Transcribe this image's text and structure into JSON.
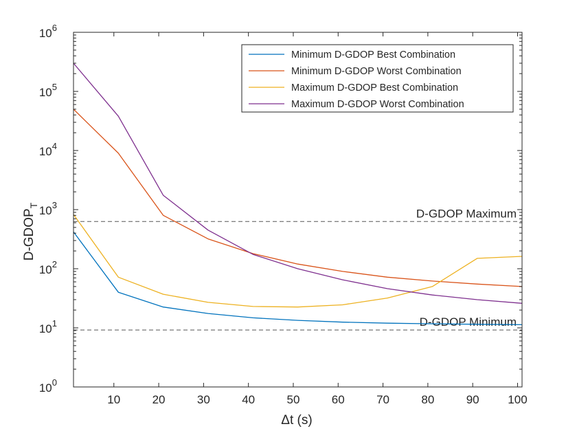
{
  "chart_data": {
    "type": "line",
    "title": "",
    "xlabel": "Δt (s)",
    "ylabel": {
      "main": "D-GDOP",
      "sub": "T"
    },
    "x_axis": {
      "min": 1,
      "max": 101,
      "ticks": [
        10,
        20,
        30,
        40,
        50,
        60,
        70,
        80,
        90,
        100
      ]
    },
    "y_axis": {
      "scale": "log",
      "min": 1,
      "max": 1000000,
      "ticks": [
        {
          "value": 1,
          "base": "10",
          "exp": "0"
        },
        {
          "value": 10,
          "base": "10",
          "exp": "1"
        },
        {
          "value": 100,
          "base": "10",
          "exp": "2"
        },
        {
          "value": 1000,
          "base": "10",
          "exp": "3"
        },
        {
          "value": 10000,
          "base": "10",
          "exp": "4"
        },
        {
          "value": 100000,
          "base": "10",
          "exp": "5"
        },
        {
          "value": 1000000,
          "base": "10",
          "exp": "6"
        }
      ]
    },
    "x": [
      1,
      11,
      21,
      31,
      41,
      51,
      61,
      71,
      81,
      91,
      101
    ],
    "series": [
      {
        "name": "Minimum D-GDOP Best Combination",
        "color": "#0072BD",
        "values": [
          420,
          40,
          22.5,
          17.5,
          14.8,
          13.4,
          12.5,
          12.0,
          11.7,
          11.5,
          11.3
        ]
      },
      {
        "name": "Minimum D-GDOP Worst Combination",
        "color": "#D95319",
        "values": [
          50000,
          9000,
          800,
          320,
          180,
          120,
          90,
          72,
          62,
          55,
          50
        ]
      },
      {
        "name": "Maximum D-GDOP Best Combination",
        "color": "#EDB120",
        "values": [
          830,
          72,
          37,
          27,
          23,
          22.5,
          24.5,
          32,
          50,
          150,
          162
        ]
      },
      {
        "name": "Maximum D-GDOP Worst Combination",
        "color": "#7E2F8E",
        "values": [
          300000,
          38000,
          1750,
          450,
          175,
          100,
          65,
          46,
          36,
          30,
          26
        ]
      }
    ],
    "reference_lines": [
      {
        "label": "D-GDOP Maximum",
        "value": 630,
        "color": "#555555"
      },
      {
        "label": "D-GDOP Minimum",
        "value": 9.2,
        "color": "#555555"
      }
    ],
    "legend": {
      "position": "top-right"
    },
    "grid": false
  }
}
